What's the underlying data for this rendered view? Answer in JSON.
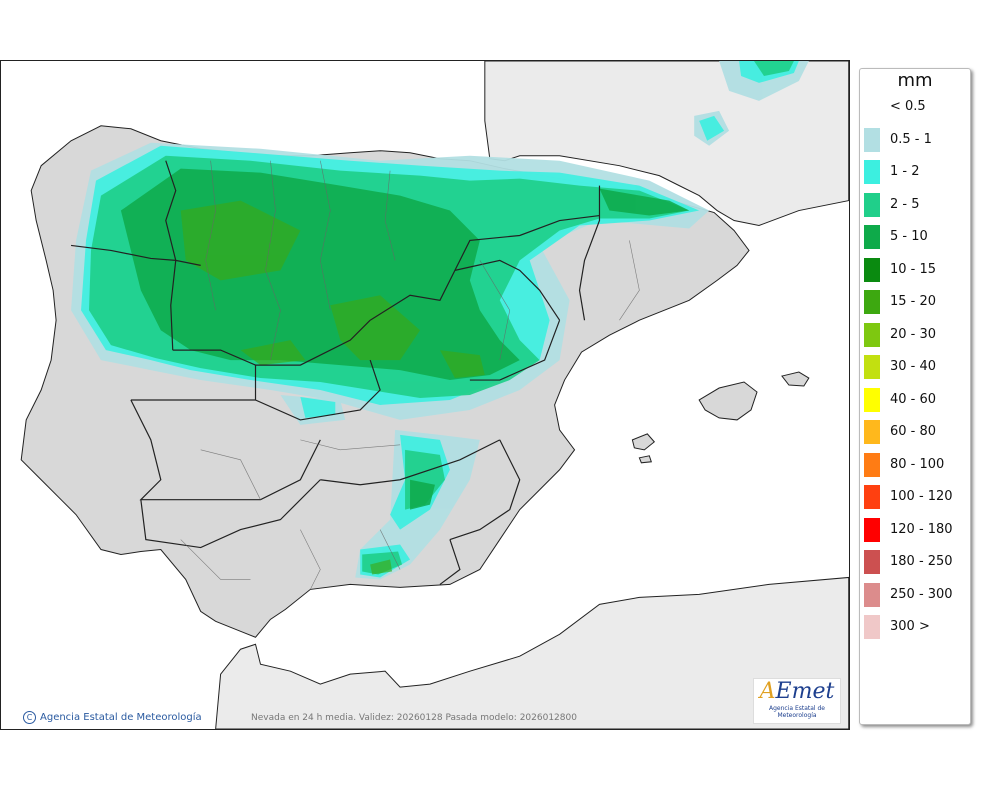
{
  "legend": {
    "unit": "mm",
    "items": [
      {
        "label": "< 0.5",
        "color": ""
      },
      {
        "label": "0.5 - 1",
        "color": "#b2dfe3"
      },
      {
        "label": "1 - 2",
        "color": "#3cefe0"
      },
      {
        "label": "2 - 5",
        "color": "#20cf8a"
      },
      {
        "label": "5 - 10",
        "color": "#0eaa4a"
      },
      {
        "label": "10 - 15",
        "color": "#0a8a10"
      },
      {
        "label": "15 - 20",
        "color": "#3da810"
      },
      {
        "label": "20 - 30",
        "color": "#7ec810"
      },
      {
        "label": "30 - 40",
        "color": "#c2e010"
      },
      {
        "label": "40 - 60",
        "color": "#ffff00"
      },
      {
        "label": "60 - 80",
        "color": "#ffb81c"
      },
      {
        "label": "80 - 100",
        "color": "#ff7c14"
      },
      {
        "label": "100 - 120",
        "color": "#ff4010"
      },
      {
        "label": "120 - 180",
        "color": "#ff0000"
      },
      {
        "label": "180 - 250",
        "color": "#cc5050"
      },
      {
        "label": "250 - 300",
        "color": "#dc8c8c"
      },
      {
        "label": "300 >",
        "color": "#f0c8c8"
      }
    ]
  },
  "footer": {
    "credit": "Agencia Estatal de Meteorología",
    "caption": "Nevada en 24 h media. Validez: 20260128 Pasada modelo: 2026012800"
  },
  "logo": {
    "mark": "AEmet",
    "sub": "Agencia Estatal de Meteorología"
  }
}
